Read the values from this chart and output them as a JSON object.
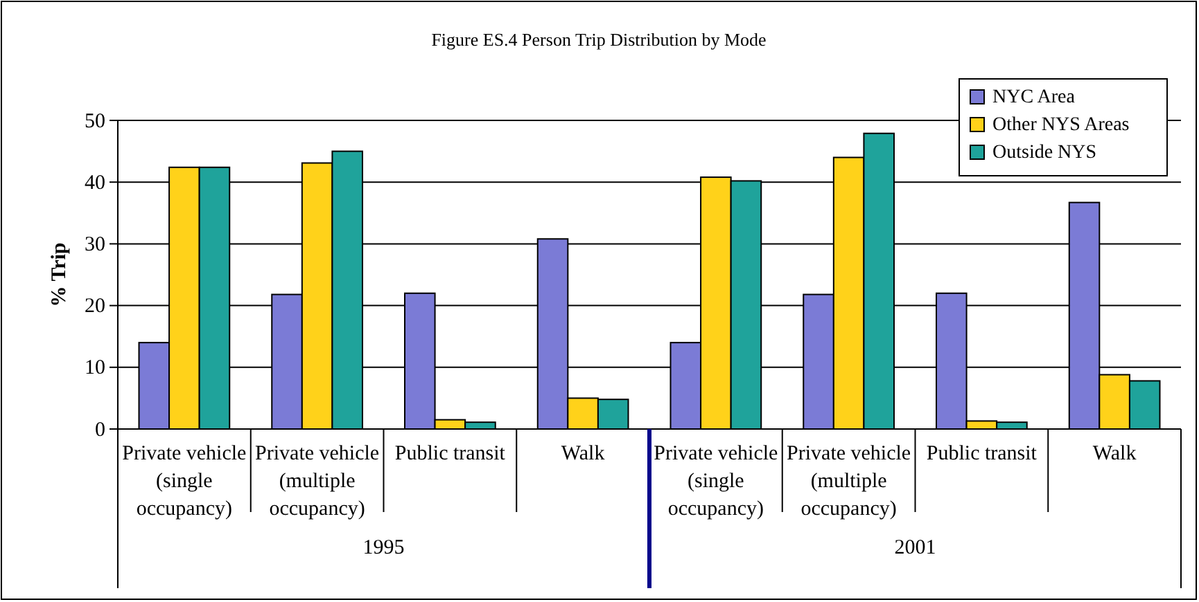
{
  "chart_data": {
    "type": "bar",
    "title": "Figure ES.4 Person Trip Distribution by Mode",
    "ylabel": "% Trip",
    "categories": [
      "Private vehicle (single occupancy)",
      "Private vehicle (multiple occupancy)",
      "Public transit",
      "Walk",
      "Private vehicle (single occupancy)",
      "Private vehicle (multiple occupancy)",
      "Public transit",
      "Walk"
    ],
    "series": [
      {
        "name": "NYC Area",
        "color": "#7b7bd6",
        "values": [
          14,
          21.8,
          22,
          30.8,
          14,
          21.8,
          22,
          36.7
        ]
      },
      {
        "name": "Other NYS Areas",
        "color": "#ffd21a",
        "values": [
          42.4,
          43.1,
          1.5,
          5,
          40.8,
          44,
          1.3,
          8.8
        ]
      },
      {
        "name": "Outside NYS",
        "color": "#1fa39b",
        "values": [
          42.4,
          45,
          1.1,
          4.8,
          40.2,
          47.9,
          1.1,
          7.8
        ]
      }
    ],
    "annotations": [
      "1995",
      "2001"
    ],
    "ylim": [
      0,
      50
    ],
    "yticks": [
      0,
      10,
      20,
      30,
      40,
      50
    ],
    "grid": "y",
    "legend": "top right"
  }
}
